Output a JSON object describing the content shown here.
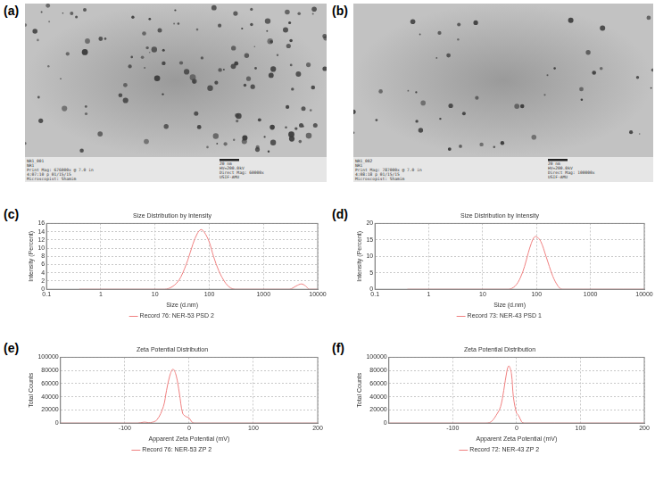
{
  "images": [
    {
      "panel": "(a)",
      "caption_left": [
        "NR1_001",
        "NR1",
        "Print Mag: 676000x @ 7.0 in",
        "4:07:10 p 01/15/15",
        "Microscopist: Shamim"
      ],
      "scale_bar": "20 nm",
      "caption_right": [
        "HV=200.0kV",
        "Direct Mag: 60000x",
        "USIF-AMU"
      ]
    },
    {
      "panel": "(b)",
      "caption_left": [
        "NR1_002",
        "NR1",
        "Print Mag: 787000x @ 7.0 in",
        "4:08:18 p 01/15/15",
        "Microscopist: Shamim"
      ],
      "scale_bar": "20 nm",
      "caption_right": [
        "HV=200.0kV",
        "Direct Mag: 100000x",
        "USIF-AMU"
      ]
    }
  ],
  "chart_data": [
    {
      "panel": "(c)",
      "type": "line",
      "title": "Size Distribution by Intensity",
      "x_label": "Size (d.nm)",
      "y_label": "Intensity (Percent)",
      "log": "x",
      "grid": true,
      "legend": "bottom",
      "xlim": [
        0.1,
        10000
      ],
      "xticks": [
        0.1,
        1,
        10,
        100,
        1000,
        10000
      ],
      "ylim": [
        0,
        16
      ],
      "yticks": [
        0,
        2,
        4,
        6,
        8,
        10,
        12,
        14,
        16
      ],
      "x": [
        0.4,
        15,
        20,
        25,
        30,
        40,
        50,
        60,
        70,
        80,
        100,
        120,
        150,
        200,
        250,
        300,
        3000,
        4000,
        5000,
        6000,
        7000,
        10000
      ],
      "series": [
        {
          "name": "Record 76: NER-53 PSD 2",
          "color": "#f08080",
          "values": [
            0,
            0,
            0.5,
            1.5,
            3,
            7,
            11,
            13.5,
            14.5,
            14,
            11.5,
            8,
            4.5,
            1.5,
            0.3,
            0,
            0,
            0.8,
            1.3,
            0.8,
            0,
            0
          ]
        }
      ]
    },
    {
      "panel": "(d)",
      "type": "line",
      "title": "Size Distribution by Intensity",
      "x_label": "Size (d.nm)",
      "y_label": "Intensity (Percent)",
      "log": "x",
      "grid": true,
      "legend": "bottom",
      "xlim": [
        0.1,
        10000
      ],
      "xticks": [
        0.1,
        1,
        10,
        100,
        1000,
        10000
      ],
      "ylim": [
        0,
        20
      ],
      "yticks": [
        0,
        5,
        10,
        15,
        20
      ],
      "x": [
        0.4,
        30,
        40,
        50,
        60,
        70,
        80,
        90,
        100,
        120,
        150,
        200,
        250,
        300,
        10000
      ],
      "series": [
        {
          "name": "Record 73: NER-43 PSD 1",
          "color": "#f08080",
          "values": [
            0,
            0,
            1,
            3.5,
            7,
            11,
            14,
            15.8,
            16,
            14.5,
            10,
            4,
            1,
            0,
            0
          ]
        }
      ]
    },
    {
      "panel": "(e)",
      "type": "line",
      "title": "Zeta Potential Distribution",
      "x_label": "Apparent Zeta Potential (mV)",
      "y_label": "Total Counts",
      "grid": true,
      "legend": "bottom",
      "xlim": [
        -200,
        200
      ],
      "xticks": [
        -100,
        0,
        100,
        200
      ],
      "ylim": [
        0,
        100000
      ],
      "yticks": [
        0,
        20000,
        40000,
        60000,
        80000,
        100000
      ],
      "x": [
        -200,
        -80,
        -70,
        -60,
        -50,
        -40,
        -35,
        -30,
        -25,
        -20,
        -15,
        -10,
        -5,
        0,
        5,
        10,
        200
      ],
      "series": [
        {
          "name": "Record 76: NER-53 ZP 2",
          "color": "#f08080",
          "values": [
            0,
            0,
            1500,
            800,
            5000,
            25000,
            50000,
            72000,
            82000,
            72000,
            45000,
            15000,
            10000,
            8000,
            1000,
            0,
            0
          ]
        }
      ]
    },
    {
      "panel": "(f)",
      "type": "line",
      "title": "Zeta Potential Distribution",
      "x_label": "Apparent Zeta Potential (mV)",
      "y_label": "Total Counts",
      "grid": true,
      "legend": "bottom",
      "xlim": [
        -200,
        200
      ],
      "xticks": [
        -100,
        0,
        100,
        200
      ],
      "ylim": [
        0,
        100000
      ],
      "yticks": [
        0,
        20000,
        40000,
        60000,
        80000,
        100000
      ],
      "x": [
        -200,
        -50,
        -40,
        -30,
        -25,
        -20,
        -15,
        -12,
        -8,
        -5,
        0,
        3,
        8,
        12,
        200
      ],
      "series": [
        {
          "name": "Record 72: NER-43 ZP 2",
          "color": "#f08080",
          "values": [
            0,
            0,
            2000,
            15000,
            25000,
            50000,
            80000,
            87000,
            75000,
            40000,
            15000,
            12000,
            2000,
            0,
            0
          ]
        }
      ]
    }
  ]
}
